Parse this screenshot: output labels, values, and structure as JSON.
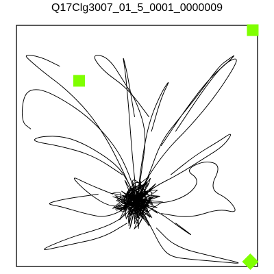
{
  "chart_data": {
    "type": "trajectory",
    "title": "Q17Clg3007_01_5_0001_0000009",
    "xlim": [
      0,
      100
    ],
    "ylim": [
      0,
      100
    ],
    "grid": false,
    "marker_color": "#7fff00",
    "line_color": "#000000",
    "markers": [
      {
        "shape": "square",
        "x": 98,
        "y": 98
      },
      {
        "shape": "square",
        "x": 26,
        "y": 77
      },
      {
        "shape": "diamond",
        "x": 97,
        "y": 2
      }
    ],
    "path_segments": [
      [
        [
          50,
          27
        ],
        [
          44,
          40
        ],
        [
          38,
          52
        ],
        [
          30,
          64
        ],
        [
          20,
          74
        ],
        [
          12,
          80
        ],
        [
          6,
          85
        ],
        [
          3,
          88
        ],
        [
          10,
          87
        ],
        [
          18,
          83
        ]
      ],
      [
        [
          50,
          27
        ],
        [
          47,
          38
        ],
        [
          41,
          50
        ],
        [
          30,
          62
        ],
        [
          18,
          70
        ],
        [
          9,
          74
        ],
        [
          3,
          72
        ],
        [
          2,
          60
        ],
        [
          6,
          57
        ]
      ],
      [
        [
          50,
          27
        ],
        [
          52,
          40
        ],
        [
          54,
          55
        ],
        [
          50,
          68
        ],
        [
          45,
          76
        ],
        [
          38,
          87
        ],
        [
          31,
          88
        ],
        [
          36,
          81
        ],
        [
          46,
          74
        ],
        [
          55,
          62
        ]
      ],
      [
        [
          50,
          27
        ],
        [
          55,
          38
        ],
        [
          60,
          52
        ],
        [
          68,
          62
        ],
        [
          76,
          72
        ],
        [
          84,
          83
        ],
        [
          88,
          86
        ],
        [
          91,
          88
        ],
        [
          88,
          85
        ],
        [
          80,
          78
        ],
        [
          70,
          65
        ],
        [
          60,
          50
        ]
      ],
      [
        [
          50,
          27
        ],
        [
          53,
          35
        ],
        [
          62,
          48
        ],
        [
          72,
          58
        ],
        [
          82,
          70
        ],
        [
          90,
          82
        ],
        [
          92,
          87
        ],
        [
          86,
          84
        ],
        [
          78,
          74
        ],
        [
          66,
          56
        ]
      ],
      [
        [
          50,
          27
        ],
        [
          47,
          34
        ],
        [
          42,
          42
        ],
        [
          30,
          50
        ],
        [
          20,
          54
        ],
        [
          10,
          54
        ],
        [
          6,
          52
        ],
        [
          18,
          50
        ],
        [
          32,
          46
        ],
        [
          44,
          38
        ]
      ],
      [
        [
          50,
          27
        ],
        [
          57,
          33
        ],
        [
          67,
          38
        ],
        [
          78,
          45
        ],
        [
          86,
          50
        ],
        [
          90,
          56
        ],
        [
          84,
          52
        ],
        [
          74,
          46
        ],
        [
          64,
          38
        ]
      ],
      [
        [
          50,
          27
        ],
        [
          62,
          26
        ],
        [
          72,
          30
        ],
        [
          76,
          36
        ],
        [
          70,
          40
        ],
        [
          78,
          44
        ],
        [
          85,
          42
        ],
        [
          80,
          32
        ],
        [
          88,
          28
        ],
        [
          92,
          22
        ],
        [
          84,
          24
        ],
        [
          72,
          20
        ],
        [
          60,
          22
        ]
      ],
      [
        [
          50,
          27
        ],
        [
          40,
          24
        ],
        [
          30,
          30
        ],
        [
          22,
          38
        ],
        [
          30,
          34
        ],
        [
          40,
          30
        ]
      ],
      [
        [
          50,
          27
        ],
        [
          44,
          20
        ],
        [
          36,
          16
        ],
        [
          22,
          12
        ],
        [
          8,
          6
        ],
        [
          22,
          9
        ],
        [
          36,
          12
        ],
        [
          46,
          18
        ]
      ],
      [
        [
          50,
          27
        ],
        [
          56,
          16
        ],
        [
          60,
          8
        ],
        [
          64,
          4
        ],
        [
          72,
          3
        ],
        [
          84,
          2
        ],
        [
          95,
          1
        ],
        [
          82,
          4
        ],
        [
          66,
          8
        ],
        [
          58,
          16
        ]
      ],
      [
        [
          50,
          27
        ],
        [
          60,
          22
        ],
        [
          68,
          16
        ],
        [
          74,
          12
        ],
        [
          66,
          18
        ]
      ],
      [
        [
          50,
          27
        ],
        [
          38,
          20
        ],
        [
          28,
          22
        ],
        [
          18,
          25
        ],
        [
          12,
          26
        ],
        [
          20,
          28
        ],
        [
          34,
          30
        ]
      ],
      [
        [
          50,
          27
        ],
        [
          48,
          46
        ],
        [
          47,
          60
        ],
        [
          46,
          72
        ],
        [
          45,
          82
        ],
        [
          44,
          88
        ],
        [
          46,
          80
        ],
        [
          49,
          62
        ]
      ],
      [
        [
          50,
          27
        ],
        [
          52,
          44
        ],
        [
          55,
          60
        ],
        [
          60,
          72
        ],
        [
          64,
          78
        ],
        [
          60,
          70
        ],
        [
          56,
          56
        ]
      ],
      [
        [
          50,
          27
        ],
        [
          46,
          30
        ],
        [
          53,
          33
        ],
        [
          49,
          36
        ],
        [
          44,
          26
        ],
        [
          55,
          23
        ],
        [
          51,
          31
        ],
        [
          45,
          33
        ],
        [
          56,
          29
        ],
        [
          48,
          21
        ],
        [
          43,
          29
        ],
        [
          54,
          36
        ],
        [
          50,
          24
        ],
        [
          46,
          22
        ],
        [
          57,
          26
        ],
        [
          52,
          34
        ],
        [
          44,
          31
        ],
        [
          49,
          19
        ],
        [
          55,
          31
        ],
        [
          47,
          38
        ],
        [
          50,
          27
        ]
      ]
    ]
  }
}
